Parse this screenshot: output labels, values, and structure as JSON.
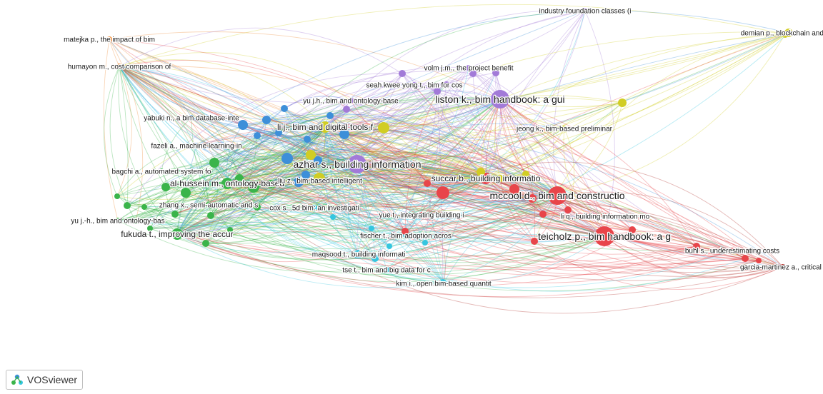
{
  "app": {
    "brand_label": "VOSviewer"
  },
  "cluster_colors": {
    "red": "#e8454a",
    "green": "#3ab44a",
    "blue": "#3d8fd9",
    "yellow": "#d1cd24",
    "purple": "#a27ad8",
    "cyan": "#35c6df",
    "orange": "#ef8a33",
    "brown": "#b3342e"
  },
  "network": {
    "nodes": [
      {
        "id": "matejka",
        "label": "matejka p., the impact of bim",
        "cluster": "orange",
        "w": 1
      },
      {
        "id": "humayon",
        "label": "humayon m., cost comparison of",
        "cluster": "orange",
        "w": 1
      },
      {
        "id": "industry",
        "label": "industry foundation classes (i",
        "cluster": "purple",
        "w": 1
      },
      {
        "id": "demian",
        "label": "demian p., blockchain and buil",
        "cluster": "yellow",
        "w": 2
      },
      {
        "id": "volm",
        "label": "volm j.m., the project benefit",
        "cluster": "purple",
        "w": 1
      },
      {
        "id": "seah",
        "label": "seah kwee yong t., bim for cos",
        "cluster": "purple",
        "w": 1
      },
      {
        "id": "liston",
        "label": "liston k., bim handbook: a gui",
        "cluster": "purple",
        "w": 5
      },
      {
        "id": "yujh",
        "label": "yu j.h., bim and ontology-base",
        "cluster": "purple",
        "w": 1
      },
      {
        "id": "yabuki",
        "label": "yabuki n., a bim database-inte",
        "cluster": "blue",
        "w": 1
      },
      {
        "id": "lij",
        "label": "li j., bim and digital tools f",
        "cluster": "yellow",
        "w": 3
      },
      {
        "id": "jeong",
        "label": "jeong k., bim-based preliminar",
        "cluster": "yellow",
        "w": 1
      },
      {
        "id": "fazeli",
        "label": "fazeli a., machine learning-in",
        "cluster": "blue",
        "w": 1
      },
      {
        "id": "bagchi",
        "label": "bagchi a., automated system fo",
        "cluster": "green",
        "w": 1
      },
      {
        "id": "azhar",
        "label": "azhar s., building information",
        "cluster": "purple",
        "w": 5
      },
      {
        "id": "succar",
        "label": "succar b., building informatio",
        "cluster": "red",
        "w": 3
      },
      {
        "id": "alhussein",
        "label": "al-hussein m., ontology-based",
        "cluster": "green",
        "w": 3
      },
      {
        "id": "liuz",
        "label": "liu z., bim-based intelligent",
        "cluster": "yellow",
        "w": 1
      },
      {
        "id": "mccool",
        "label": "mccool d., bim and constructio",
        "cluster": "red",
        "w": 5
      },
      {
        "id": "zhangx",
        "label": "zhang x., semi-automatic and s",
        "cluster": "green",
        "w": 1
      },
      {
        "id": "coxs",
        "label": "cox s., 5d bim: an investigati",
        "cluster": "cyan",
        "w": 1
      },
      {
        "id": "yuet",
        "label": "yue t., integrating building i",
        "cluster": "red",
        "w": 1
      },
      {
        "id": "liq",
        "label": "li q., building information mo",
        "cluster": "red",
        "w": 1
      },
      {
        "id": "yujh2",
        "label": "yu j.-h., bim and ontology-bas",
        "cluster": "green",
        "w": 1
      },
      {
        "id": "fukuda",
        "label": "fukuda t., improving the accur",
        "cluster": "green",
        "w": 3
      },
      {
        "id": "fischer",
        "label": "fischer t., bim adoption acros",
        "cluster": "cyan",
        "w": 1
      },
      {
        "id": "teicholz",
        "label": "teicholz p., bim handbook: a g",
        "cluster": "red",
        "w": 6
      },
      {
        "id": "maqsood",
        "label": "maqsood t., building informati",
        "cluster": "cyan",
        "w": 2
      },
      {
        "id": "buhl",
        "label": "buhl s., underestimating costs",
        "cluster": "red",
        "w": 1
      },
      {
        "id": "garcia",
        "label": "garcia-martinez a., critical r",
        "cluster": "brown",
        "w": 1
      },
      {
        "id": "tset",
        "label": "tse t., bim and big data for c",
        "cluster": "cyan",
        "w": 1
      },
      {
        "id": "kimi",
        "label": "kim i., open bim-based quantit",
        "cluster": "cyan",
        "w": 1
      }
    ]
  }
}
